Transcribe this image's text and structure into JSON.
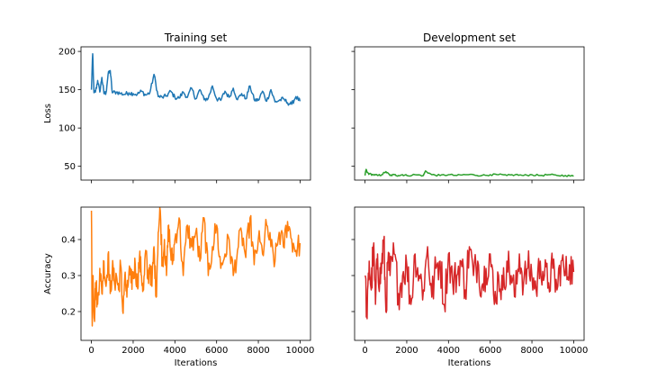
{
  "chart_data": [
    {
      "type": "line",
      "id": "train-loss",
      "title": "Training set",
      "xlabel": "",
      "ylabel": "Loss",
      "xlim": [
        -500,
        10500
      ],
      "ylim": [
        32,
        206
      ],
      "xticks": [
        0,
        2000,
        4000,
        6000,
        8000,
        10000
      ],
      "yticks": [
        50,
        100,
        150,
        200
      ],
      "show_xtick_labels": false,
      "show_ytick_labels": true,
      "series": [
        {
          "color": "#1f77b4",
          "noise": 3,
          "x": [
            0,
            60,
            120,
            200,
            300,
            400,
            500,
            600,
            700,
            800,
            900,
            1000,
            1200,
            1400,
            1600,
            1800,
            2000,
            2200,
            2400,
            2600,
            2800,
            3000,
            3200,
            3400,
            3600,
            3800,
            4000,
            4200,
            4400,
            4600,
            4800,
            5000,
            5200,
            5400,
            5600,
            5800,
            6000,
            6200,
            6400,
            6600,
            6800,
            7000,
            7200,
            7400,
            7600,
            7800,
            8000,
            8200,
            8400,
            8600,
            8800,
            9000,
            9200,
            9400,
            9600,
            9800,
            10000
          ],
          "y": [
            150,
            197,
            146,
            148,
            162,
            147,
            166,
            145,
            146,
            170,
            175,
            146,
            147,
            145,
            144,
            146,
            145,
            144,
            148,
            143,
            146,
            170,
            141,
            140,
            142,
            148,
            140,
            139,
            147,
            140,
            152,
            138,
            150,
            137,
            139,
            155,
            138,
            136,
            148,
            140,
            152,
            137,
            145,
            138,
            155,
            137,
            136,
            148,
            135,
            150,
            134,
            136,
            138,
            133,
            131,
            141,
            135
          ]
        }
      ]
    },
    {
      "type": "line",
      "id": "dev-loss",
      "title": "Development set",
      "xlabel": "",
      "ylabel": "",
      "xlim": [
        -500,
        10500
      ],
      "ylim": [
        32,
        206
      ],
      "xticks": [
        0,
        2000,
        4000,
        6000,
        8000,
        10000
      ],
      "yticks": [
        50,
        100,
        150,
        200
      ],
      "show_xtick_labels": false,
      "show_ytick_labels": false,
      "series": [
        {
          "color": "#2ca02c",
          "noise": 1.2,
          "x": [
            0,
            50,
            100,
            200,
            400,
            600,
            800,
            1000,
            1200,
            1400,
            1600,
            1800,
            2000,
            2400,
            2800,
            2900,
            3200,
            3600,
            4000,
            4400,
            4800,
            5200,
            5600,
            6000,
            6400,
            6800,
            7200,
            7600,
            8000,
            8400,
            8800,
            9200,
            9600,
            10000
          ],
          "y": [
            38,
            46,
            42,
            40,
            39,
            38,
            39,
            43,
            38,
            39,
            38,
            39,
            38,
            39,
            38,
            44,
            39,
            38,
            39,
            38,
            39,
            39,
            38,
            39,
            39,
            38,
            39,
            38,
            39,
            38,
            39,
            38,
            38,
            37
          ]
        }
      ]
    },
    {
      "type": "line",
      "id": "train-acc",
      "title": "",
      "xlabel": "Iterations",
      "ylabel": "Accuracy",
      "xlim": [
        -500,
        10500
      ],
      "ylim": [
        0.12,
        0.49
      ],
      "xticks": [
        0,
        2000,
        4000,
        6000,
        8000,
        10000
      ],
      "yticks": [
        0.2,
        0.3,
        0.4
      ],
      "show_xtick_labels": true,
      "show_ytick_labels": true,
      "series": [
        {
          "color": "#ff7f0e",
          "noise": 0.035,
          "x": [
            0,
            40,
            80,
            140,
            200,
            300,
            400,
            500,
            600,
            700,
            800,
            900,
            1000,
            1100,
            1200,
            1300,
            1400,
            1500,
            1600,
            1700,
            1800,
            1900,
            2000,
            2100,
            2200,
            2300,
            2400,
            2500,
            2600,
            2700,
            2800,
            2900,
            3000,
            3100,
            3200,
            3300,
            3400,
            3500,
            3600,
            3700,
            3800,
            3900,
            4000,
            4200,
            4400,
            4600,
            4800,
            5000,
            5200,
            5400,
            5600,
            5800,
            6000,
            6200,
            6400,
            6600,
            6800,
            7000,
            7200,
            7400,
            7600,
            7800,
            8000,
            8200,
            8400,
            8600,
            8800,
            9000,
            9200,
            9400,
            9600,
            9800,
            10000
          ],
          "y": [
            0.48,
            0.16,
            0.3,
            0.18,
            0.28,
            0.22,
            0.32,
            0.25,
            0.34,
            0.27,
            0.36,
            0.25,
            0.32,
            0.28,
            0.3,
            0.26,
            0.33,
            0.2,
            0.3,
            0.24,
            0.31,
            0.28,
            0.3,
            0.33,
            0.27,
            0.35,
            0.3,
            0.26,
            0.37,
            0.29,
            0.33,
            0.27,
            0.38,
            0.24,
            0.42,
            0.48,
            0.33,
            0.4,
            0.3,
            0.44,
            0.36,
            0.34,
            0.4,
            0.46,
            0.3,
            0.44,
            0.38,
            0.42,
            0.34,
            0.46,
            0.3,
            0.38,
            0.44,
            0.32,
            0.36,
            0.4,
            0.3,
            0.37,
            0.42,
            0.35,
            0.46,
            0.33,
            0.4,
            0.36,
            0.44,
            0.38,
            0.34,
            0.42,
            0.38,
            0.45,
            0.4,
            0.37,
            0.39
          ]
        }
      ]
    },
    {
      "type": "line",
      "id": "dev-acc",
      "title": "",
      "xlabel": "Iterations",
      "ylabel": "",
      "xlim": [
        -500,
        10500
      ],
      "ylim": [
        0.12,
        0.49
      ],
      "xticks": [
        0,
        2000,
        4000,
        6000,
        8000,
        10000
      ],
      "yticks": [
        0.2,
        0.3,
        0.4
      ],
      "show_xtick_labels": true,
      "show_ytick_labels": false,
      "series": [
        {
          "color": "#d62728",
          "noise": 0.055,
          "x": [
            0,
            100,
            200,
            300,
            400,
            500,
            600,
            700,
            800,
            900,
            1000,
            1100,
            1200,
            1400,
            1600,
            1800,
            2000,
            2200,
            2400,
            2600,
            2800,
            3000,
            3200,
            3400,
            3600,
            3800,
            4000,
            4200,
            4400,
            4600,
            4800,
            5000,
            5200,
            5400,
            5600,
            5800,
            6000,
            6200,
            6400,
            6600,
            6800,
            7000,
            7200,
            7400,
            7600,
            7800,
            8000,
            8200,
            8400,
            8600,
            8800,
            9000,
            9200,
            9400,
            9600,
            9800,
            10000
          ],
          "y": [
            0.3,
            0.18,
            0.34,
            0.26,
            0.38,
            0.22,
            0.36,
            0.28,
            0.33,
            0.4,
            0.2,
            0.34,
            0.3,
            0.36,
            0.25,
            0.3,
            0.33,
            0.22,
            0.36,
            0.3,
            0.26,
            0.38,
            0.24,
            0.32,
            0.34,
            0.22,
            0.36,
            0.28,
            0.3,
            0.34,
            0.26,
            0.38,
            0.3,
            0.34,
            0.27,
            0.32,
            0.36,
            0.22,
            0.3,
            0.26,
            0.34,
            0.3,
            0.24,
            0.36,
            0.28,
            0.32,
            0.3,
            0.26,
            0.34,
            0.3,
            0.28,
            0.32,
            0.26,
            0.34,
            0.3,
            0.33,
            0.31
          ]
        }
      ]
    }
  ]
}
